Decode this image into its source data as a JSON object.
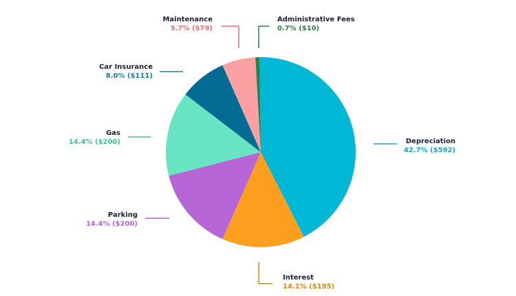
{
  "chart_data": {
    "type": "pie",
    "title": "",
    "slices": [
      {
        "name": "Depreciation",
        "value": 42.7,
        "amount": "$592",
        "label_value": "42.7% ($592)",
        "color": "#00b8d6"
      },
      {
        "name": "Interest",
        "value": 14.1,
        "amount": "$195",
        "label_value": "14.1% ($195)",
        "color": "#fd9f1e"
      },
      {
        "name": "Parking",
        "value": 14.4,
        "amount": "$200",
        "label_value": "14.4% ($200)",
        "color": "#b565d6"
      },
      {
        "name": "Gas",
        "value": 14.4,
        "amount": "$200",
        "label_value": "14.4% ($200)",
        "color": "#68e6c3"
      },
      {
        "name": "Car Insurance",
        "value": 8.0,
        "amount": "$111",
        "label_value": "8.0% ($111)",
        "color": "#046c94"
      },
      {
        "name": "Maintenance",
        "value": 5.7,
        "amount": "$79",
        "label_value": "5.7% ($79)",
        "color": "#fba1a4"
      },
      {
        "name": "Administrative Fees",
        "value": 0.7,
        "amount": "$10",
        "label_value": "0.7% ($10)",
        "color": "#2f8046"
      }
    ],
    "label_colors": {
      "Depreciation": "#1aa3c8",
      "Interest": "#d98a14",
      "Parking": "#b565d6",
      "Gas": "#3dbf9c",
      "Car Insurance": "#1a7fa6",
      "Maintenance": "#e86f74",
      "Administrative Fees": "#2f8046"
    }
  }
}
